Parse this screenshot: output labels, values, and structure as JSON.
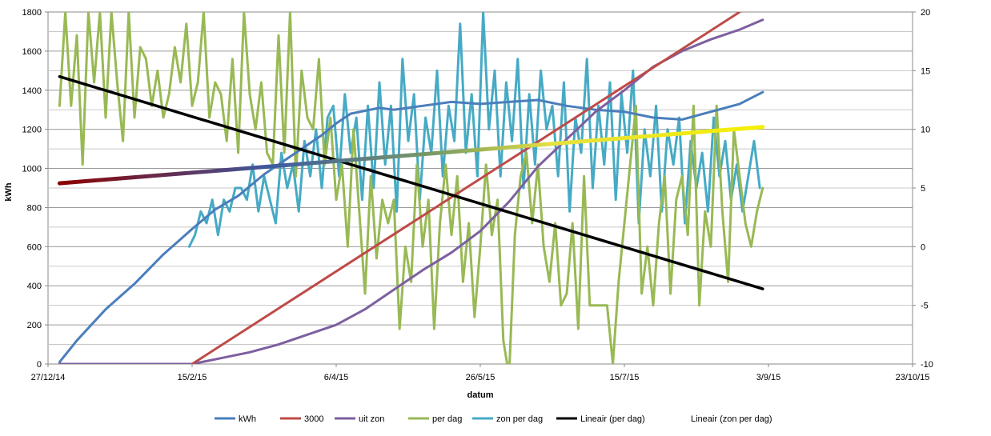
{
  "chart_data": {
    "type": "line",
    "title": "",
    "xlabel": "datum",
    "ylabel": "kWh",
    "ylabel_right": "",
    "x_ticks": [
      "27/12/14",
      "15/2/15",
      "6/4/15",
      "26/5/15",
      "15/7/15",
      "3/9/15",
      "23/10/15"
    ],
    "x_range_days": [
      0,
      300
    ],
    "ylim": [
      0,
      1800
    ],
    "ylim_right": [
      -10,
      20
    ],
    "y_ticks": [
      "0",
      "200",
      "400",
      "600",
      "800",
      "1000",
      "1200",
      "1400",
      "1600",
      "1800"
    ],
    "y_ticks_right": [
      "-10",
      "-5",
      "0",
      "5",
      "10",
      "15",
      "20"
    ],
    "grid": true,
    "legend_position": "bottom",
    "legend": [
      {
        "name": "kWh",
        "color": "#4A7EBB"
      },
      {
        "name": "3000",
        "color": "#BE4B48"
      },
      {
        "name": "uit zon",
        "color": "#7D5FA0"
      },
      {
        "name": "per dag",
        "color": "#98B954"
      },
      {
        "name": "zon per dag",
        "color": "#46AAC5"
      },
      {
        "name": "Lineair (per dag)",
        "color": "#000000"
      },
      {
        "name": "Lineair (zon per dag)",
        "color": "#F0E000"
      }
    ],
    "series": [
      {
        "name": "kWh",
        "axis": "left",
        "color": "#4A7EBB",
        "x": [
          4,
          10,
          20,
          30,
          40,
          50,
          58,
          66,
          75,
          85,
          95,
          100,
          105,
          115,
          120,
          130,
          140,
          150,
          160,
          170,
          180,
          190,
          200,
          210,
          220,
          230,
          240,
          248
        ],
        "y": [
          10,
          120,
          280,
          410,
          560,
          690,
          790,
          860,
          970,
          1070,
          1170,
          1230,
          1280,
          1310,
          1300,
          1320,
          1340,
          1330,
          1340,
          1350,
          1320,
          1300,
          1290,
          1260,
          1250,
          1290,
          1330,
          1390
        ]
      },
      {
        "name": "3000",
        "axis": "left",
        "color": "#BE4B48",
        "x": [
          50,
          240
        ],
        "y": [
          0,
          1800
        ]
      },
      {
        "name": "uit zon",
        "axis": "left",
        "color": "#7D5FA0",
        "x": [
          4,
          50,
          60,
          70,
          80,
          90,
          100,
          110,
          120,
          130,
          140,
          150,
          160,
          170,
          180,
          190,
          200,
          210,
          220,
          230,
          240,
          248
        ],
        "y": [
          0,
          0,
          30,
          60,
          100,
          150,
          200,
          280,
          380,
          480,
          570,
          680,
          830,
          1010,
          1150,
          1290,
          1400,
          1520,
          1600,
          1660,
          1710,
          1760
        ]
      },
      {
        "name": "per dag",
        "axis": "right",
        "color": "#98B954",
        "x": [
          4,
          6,
          8,
          10,
          12,
          14,
          16,
          18,
          20,
          22,
          24,
          26,
          28,
          30,
          32,
          34,
          36,
          38,
          40,
          42,
          44,
          46,
          48,
          50,
          52,
          54,
          56,
          58,
          60,
          62,
          64,
          66,
          68,
          70,
          72,
          74,
          76,
          78,
          80,
          82,
          84,
          86,
          88,
          90,
          92,
          94,
          96,
          98,
          100,
          102,
          104,
          106,
          108,
          110,
          112,
          114,
          116,
          118,
          120,
          122,
          124,
          126,
          128,
          130,
          132,
          134,
          136,
          138,
          140,
          142,
          144,
          146,
          148,
          150,
          152,
          154,
          156,
          158,
          160,
          162,
          164,
          166,
          168,
          170,
          172,
          174,
          176,
          178,
          180,
          182,
          184,
          186,
          188,
          190,
          192,
          194,
          196,
          198,
          200,
          202,
          204,
          206,
          208,
          210,
          212,
          214,
          216,
          218,
          220,
          222,
          224,
          226,
          228,
          230,
          232,
          234,
          236,
          238,
          240,
          242,
          244,
          246,
          248
        ],
        "y": [
          12,
          20,
          12,
          18,
          7,
          20,
          14,
          20,
          11,
          20,
          14,
          9,
          20,
          11,
          17,
          16,
          12,
          15,
          11,
          13,
          17,
          14,
          19,
          12,
          14,
          20,
          11,
          14,
          13,
          9,
          16,
          8,
          20,
          13,
          10,
          14,
          8,
          7,
          18,
          8,
          20,
          6,
          15,
          11,
          10,
          16,
          7,
          11,
          4,
          7,
          0,
          10,
          3,
          -4,
          6,
          -1,
          4,
          2,
          4,
          -7,
          0,
          -3,
          7,
          0,
          4,
          -7,
          2,
          7,
          1,
          6,
          -3,
          2,
          -6,
          0,
          7,
          1,
          4,
          -8,
          -11,
          1,
          6,
          8,
          2,
          7,
          0,
          -3,
          2,
          -5,
          -4,
          2,
          -7,
          6,
          -5,
          -5,
          -5,
          -5,
          -10,
          -3,
          2,
          7,
          12,
          -4,
          0,
          -5,
          2,
          6,
          -4,
          4,
          6,
          1,
          12,
          -5,
          3,
          0,
          12,
          3,
          -3,
          10,
          6,
          2,
          0,
          3,
          5
        ]
      },
      {
        "name": "zon per dag",
        "axis": "right",
        "color": "#46AAC5",
        "x": [
          49,
          51,
          53,
          55,
          57,
          59,
          61,
          63,
          65,
          67,
          69,
          71,
          73,
          75,
          77,
          79,
          81,
          83,
          85,
          87,
          89,
          91,
          93,
          95,
          97,
          99,
          101,
          103,
          105,
          107,
          109,
          111,
          113,
          115,
          117,
          119,
          121,
          123,
          125,
          127,
          129,
          131,
          133,
          135,
          137,
          139,
          141,
          143,
          145,
          147,
          149,
          151,
          153,
          155,
          157,
          159,
          161,
          163,
          165,
          167,
          169,
          171,
          173,
          175,
          177,
          179,
          181,
          183,
          185,
          187,
          189,
          191,
          193,
          195,
          197,
          199,
          201,
          203,
          205,
          207,
          209,
          211,
          213,
          215,
          217,
          219,
          221,
          223,
          225,
          227,
          229,
          231,
          233,
          235,
          237,
          239,
          241,
          243,
          245,
          247
        ],
        "y": [
          0,
          1,
          3,
          2,
          4,
          1,
          4,
          3,
          5,
          5,
          4,
          7,
          3,
          6,
          4,
          2,
          8,
          5,
          7,
          3,
          9,
          6,
          10,
          5,
          11,
          12,
          6,
          13,
          8,
          11,
          4,
          12,
          5,
          14,
          7,
          12,
          3,
          16,
          9,
          13,
          4,
          11,
          8,
          15,
          6,
          12,
          9,
          19,
          8,
          13,
          6,
          20,
          10,
          15,
          6,
          14,
          9,
          16,
          5,
          13,
          7,
          15,
          10,
          12,
          6,
          14,
          3,
          11,
          8,
          16,
          5,
          12,
          7,
          14,
          4,
          13,
          8,
          15,
          2,
          10,
          6,
          12,
          3,
          10,
          7,
          11,
          2,
          9,
          5,
          8,
          3,
          11,
          6,
          9,
          4,
          7,
          3,
          6,
          9,
          5
        ]
      },
      {
        "name": "Lineair (per dag)",
        "axis": "right",
        "color": "#000000",
        "x": [
          4,
          248
        ],
        "y": [
          14.5,
          -3.6
        ]
      },
      {
        "name": "Lineair (zon per dag)",
        "axis": "right",
        "color": "#F0E000",
        "x": [
          4,
          248
        ],
        "y": [
          5.4,
          10.2
        ]
      }
    ]
  }
}
